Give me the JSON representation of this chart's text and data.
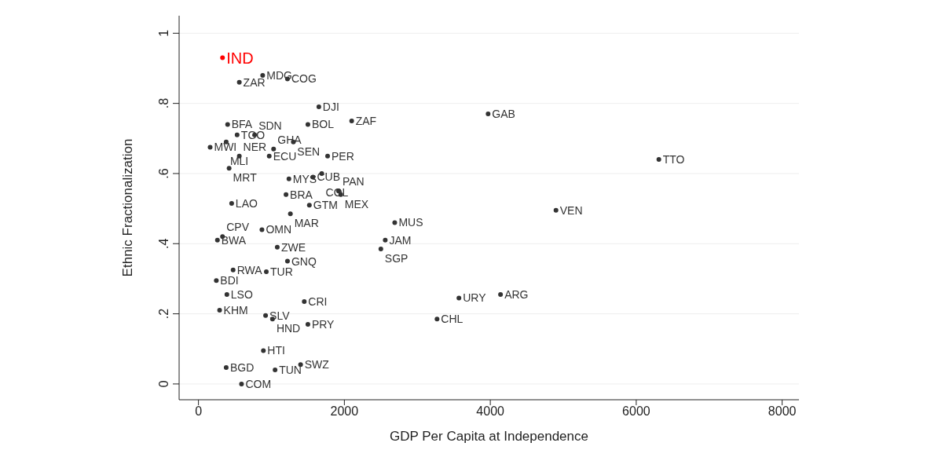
{
  "chart_data": {
    "type": "scatter",
    "xlabel": "GDP Per Capita at Independence",
    "ylabel": "Ethnic Fractionalization",
    "xlim": [
      -265,
      8230
    ],
    "ylim": [
      -0.045,
      1.05
    ],
    "xticks": [
      0,
      2000,
      4000,
      6000,
      8000
    ],
    "yticks": [
      0,
      {
        "value": 0.2,
        "label": ".2"
      },
      {
        "value": 0.4,
        "label": ".4"
      },
      {
        "value": 0.6,
        "label": ".6"
      },
      {
        "value": 0.8,
        "label": ".8"
      },
      1
    ],
    "grid": "y",
    "marker": "circle",
    "series": [
      {
        "color": "#ff0000",
        "x": [
          330
        ],
        "values": [
          0.93
        ],
        "value_labels": [
          "IND"
        ]
      },
      {
        "color": "#333333",
        "x": [
          560,
          880,
          1220,
          1650,
          2100,
          3970,
          1500,
          6310,
          400,
          530,
          770,
          160,
          380,
          560,
          970,
          1030,
          1300,
          1770,
          420,
          1240,
          1570,
          1690,
          1920,
          1950,
          1200,
          455,
          1520,
          1260,
          2690,
          4900,
          870,
          2560,
          2500,
          260,
          330,
          1080,
          1220,
          475,
          930,
          245,
          390,
          290,
          1450,
          920,
          1015,
          1500,
          3570,
          4140,
          3270,
          890,
          380,
          1050,
          1400,
          590
        ],
        "values": [
          0.86,
          0.88,
          0.87,
          0.79,
          0.75,
          0.77,
          0.74,
          0.64,
          0.74,
          0.71,
          0.71,
          0.675,
          0.69,
          0.65,
          0.65,
          0.67,
          0.69,
          0.65,
          0.615,
          0.585,
          0.59,
          0.6,
          0.55,
          0.54,
          0.54,
          0.515,
          0.51,
          0.485,
          0.46,
          0.495,
          0.44,
          0.41,
          0.385,
          0.41,
          0.42,
          0.39,
          0.35,
          0.325,
          0.32,
          0.295,
          0.255,
          0.21,
          0.235,
          0.195,
          0.185,
          0.17,
          0.245,
          0.255,
          0.185,
          0.095,
          0.047,
          0.04,
          0.055,
          0.0
        ],
        "value_labels": [
          "ZAR",
          "MDG",
          "COG",
          "DJI",
          "ZAF",
          "GAB",
          "BOL",
          "TTO",
          "BFA",
          "TGO",
          "SDN",
          "MWI",
          "MLI",
          "NER",
          "ECU",
          "GHA",
          "SEN",
          "PER",
          "MRT",
          "MYS",
          "CUB",
          "COL",
          "PAN",
          "MEX",
          "BRA",
          "LAO",
          "GTM",
          "MAR",
          "MUS",
          "VEN",
          "OMN",
          "JAM",
          "SGP",
          "BWA",
          "CPV",
          "ZWE",
          "GNQ",
          "RWA",
          "TUR",
          "BDI",
          "LSO",
          "KHM",
          "CRI",
          "SLV",
          "HND",
          "PRY",
          "URY",
          "ARG",
          "CHL",
          "HTI",
          "BGD",
          "TUN",
          "SWZ",
          "COM"
        ]
      }
    ]
  }
}
